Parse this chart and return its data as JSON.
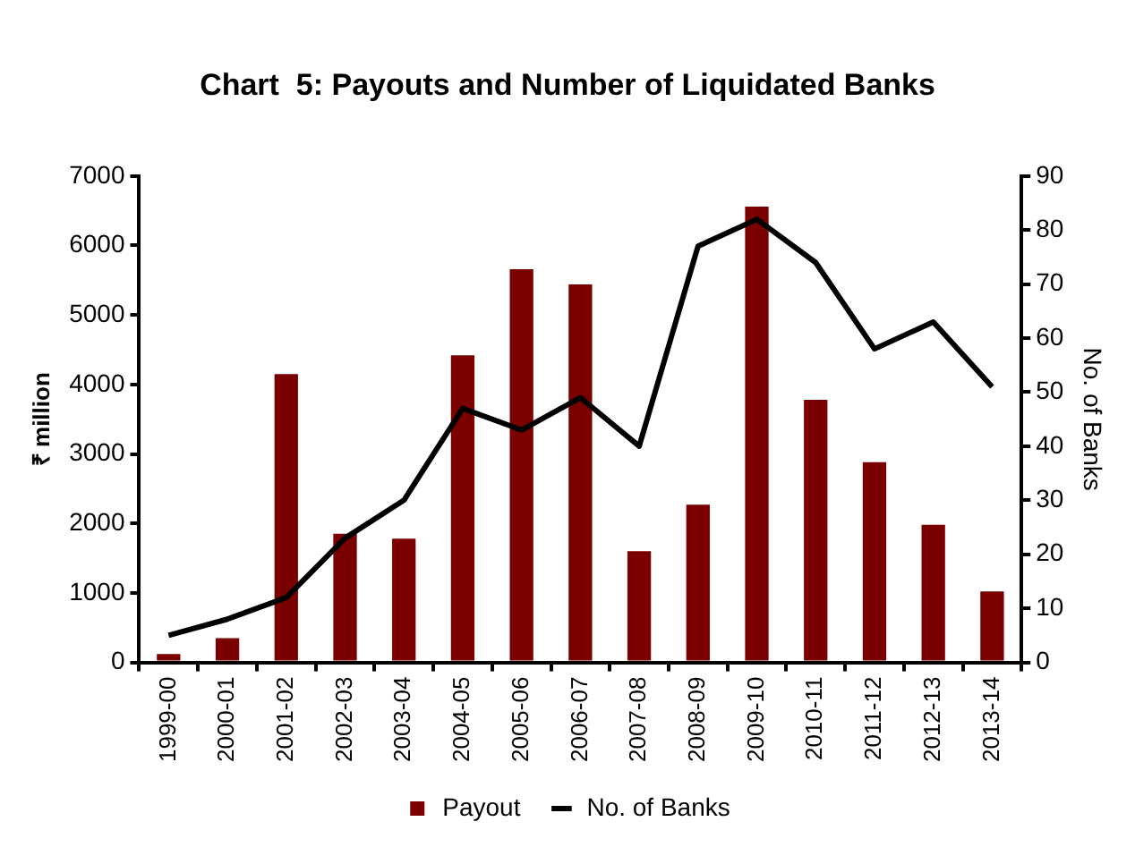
{
  "chart_data": {
    "type": "bar",
    "title": "Chart  5: Payouts and Number of Liquidated Banks",
    "ylabel": "₹ million",
    "y2label": "No. of Banks",
    "categories": [
      "1999-00",
      "2000-01",
      "2001-02",
      "2002-03",
      "2003-04",
      "2004-05",
      "2005-06",
      "2006-07",
      "2007-08",
      "2008-09",
      "2009-10",
      "2010-11",
      "2011-12",
      "2012-13",
      "2013-14"
    ],
    "series": [
      {
        "name": "Payout",
        "color": "#7b0000",
        "values": [
          120,
          350,
          4150,
          1850,
          1780,
          4420,
          5660,
          5440,
          1600,
          2270,
          6560,
          3780,
          2880,
          1980,
          1020
        ]
      },
      {
        "name": "No. of Banks",
        "type": "line",
        "axis": "y2",
        "color": "#000000",
        "marker": "none",
        "values": [
          5,
          8,
          12,
          23,
          30,
          47,
          43,
          49,
          40,
          77,
          82,
          74,
          58,
          63,
          51
        ]
      }
    ],
    "ylim": [
      0,
      7000
    ],
    "yticks": [
      0,
      1000,
      2000,
      3000,
      4000,
      5000,
      6000,
      7000
    ],
    "y2lim": [
      0,
      90
    ],
    "y2ticks": [
      0,
      10,
      20,
      30,
      40,
      50,
      60,
      70,
      80,
      90
    ],
    "legend": "bottom"
  }
}
